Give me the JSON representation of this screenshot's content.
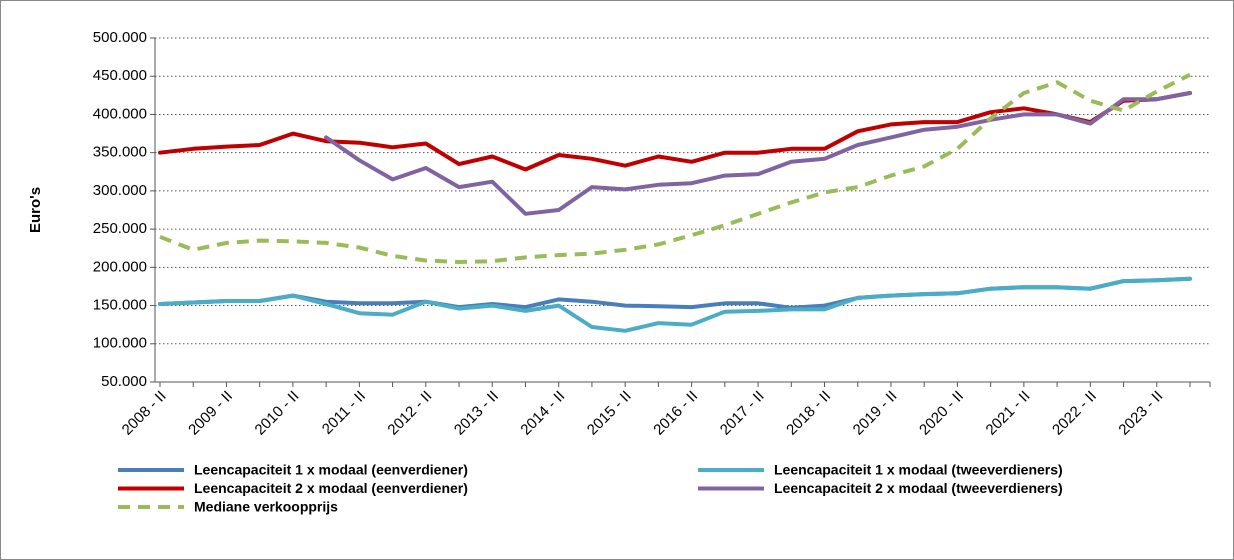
{
  "chart_data": {
    "type": "line",
    "ylabel": "Euro's",
    "categories": [
      "2008 - II",
      null,
      "2009 - II",
      null,
      "2010 - II",
      null,
      "2011 - II",
      null,
      "2012 - II",
      null,
      "2013 - II",
      null,
      "2014 - II",
      null,
      "2015 - II",
      null,
      "2016 - II",
      null,
      "2017 - II",
      null,
      "2018 - II",
      null,
      "2019 - II",
      null,
      "2020 - II",
      null,
      "2021 - II",
      null,
      "2022 - II",
      null,
      "2023 - II",
      null
    ],
    "ylim": [
      50000,
      500000
    ],
    "yticks": [
      {
        "value": 50000,
        "label": "50.000"
      },
      {
        "value": 100000,
        "label": "100.000"
      },
      {
        "value": 150000,
        "label": "150.000"
      },
      {
        "value": 200000,
        "label": "200.000"
      },
      {
        "value": 250000,
        "label": "250.000"
      },
      {
        "value": 300000,
        "label": "300.000"
      },
      {
        "value": 350000,
        "label": "350.000"
      },
      {
        "value": 400000,
        "label": "400.000"
      },
      {
        "value": 450000,
        "label": "450.000"
      },
      {
        "value": 500000,
        "label": "500.000"
      }
    ],
    "grid": true,
    "series": [
      {
        "name": "Leencapaciteit 1 x modaal (eenverdiener)",
        "color": "#4a7ebb",
        "dashed": false,
        "values": [
          152000,
          154000,
          156000,
          156000,
          163000,
          155000,
          153000,
          153000,
          155000,
          148000,
          152000,
          148000,
          158000,
          155000,
          150000,
          149000,
          148000,
          153000,
          153000,
          147000,
          150000,
          160000,
          163000,
          165000,
          166000,
          172000,
          174000,
          174000,
          172000,
          182000,
          183000,
          185000
        ]
      },
      {
        "name": "Leencapaciteit 1 x modaal (tweeverdieners)",
        "color": "#4bacc6",
        "dashed": false,
        "values": [
          152000,
          154000,
          156000,
          156000,
          163000,
          152000,
          140000,
          138000,
          155000,
          146000,
          150000,
          143000,
          150000,
          122000,
          117000,
          127000,
          125000,
          142000,
          143000,
          145000,
          145000,
          160000,
          163000,
          165000,
          166000,
          172000,
          174000,
          174000,
          172000,
          182000,
          183000,
          185000
        ]
      },
      {
        "name": "Leencapaciteit 2 x modaal (eenverdiener)",
        "color": "#c00000",
        "dashed": false,
        "values": [
          350000,
          355000,
          358000,
          360000,
          375000,
          365000,
          363000,
          357000,
          362000,
          335000,
          345000,
          328000,
          347000,
          342000,
          333000,
          345000,
          338000,
          350000,
          350000,
          355000,
          355000,
          378000,
          387000,
          390000,
          390000,
          403000,
          408000,
          400000,
          390000,
          418000,
          420000,
          428000
        ]
      },
      {
        "name": "Leencapaciteit 2 x modaal (tweeverdieners)",
        "color": "#8064a2",
        "dashed": false,
        "values": [
          null,
          null,
          null,
          null,
          null,
          370000,
          340000,
          315000,
          330000,
          305000,
          312000,
          270000,
          275000,
          305000,
          302000,
          308000,
          310000,
          320000,
          322000,
          338000,
          342000,
          360000,
          370000,
          380000,
          384000,
          393000,
          400000,
          400000,
          388000,
          420000,
          420000,
          428000
        ]
      },
      {
        "name": "Mediane verkoopprijs",
        "color": "#9bbb59",
        "dashed": true,
        "values": [
          240000,
          223000,
          232000,
          235000,
          234000,
          232000,
          226000,
          215000,
          209000,
          207000,
          208000,
          213000,
          216000,
          218000,
          223000,
          230000,
          242000,
          255000,
          270000,
          285000,
          298000,
          305000,
          320000,
          332000,
          355000,
          395000,
          428000,
          442000,
          418000,
          405000,
          430000,
          452000
        ]
      }
    ]
  }
}
